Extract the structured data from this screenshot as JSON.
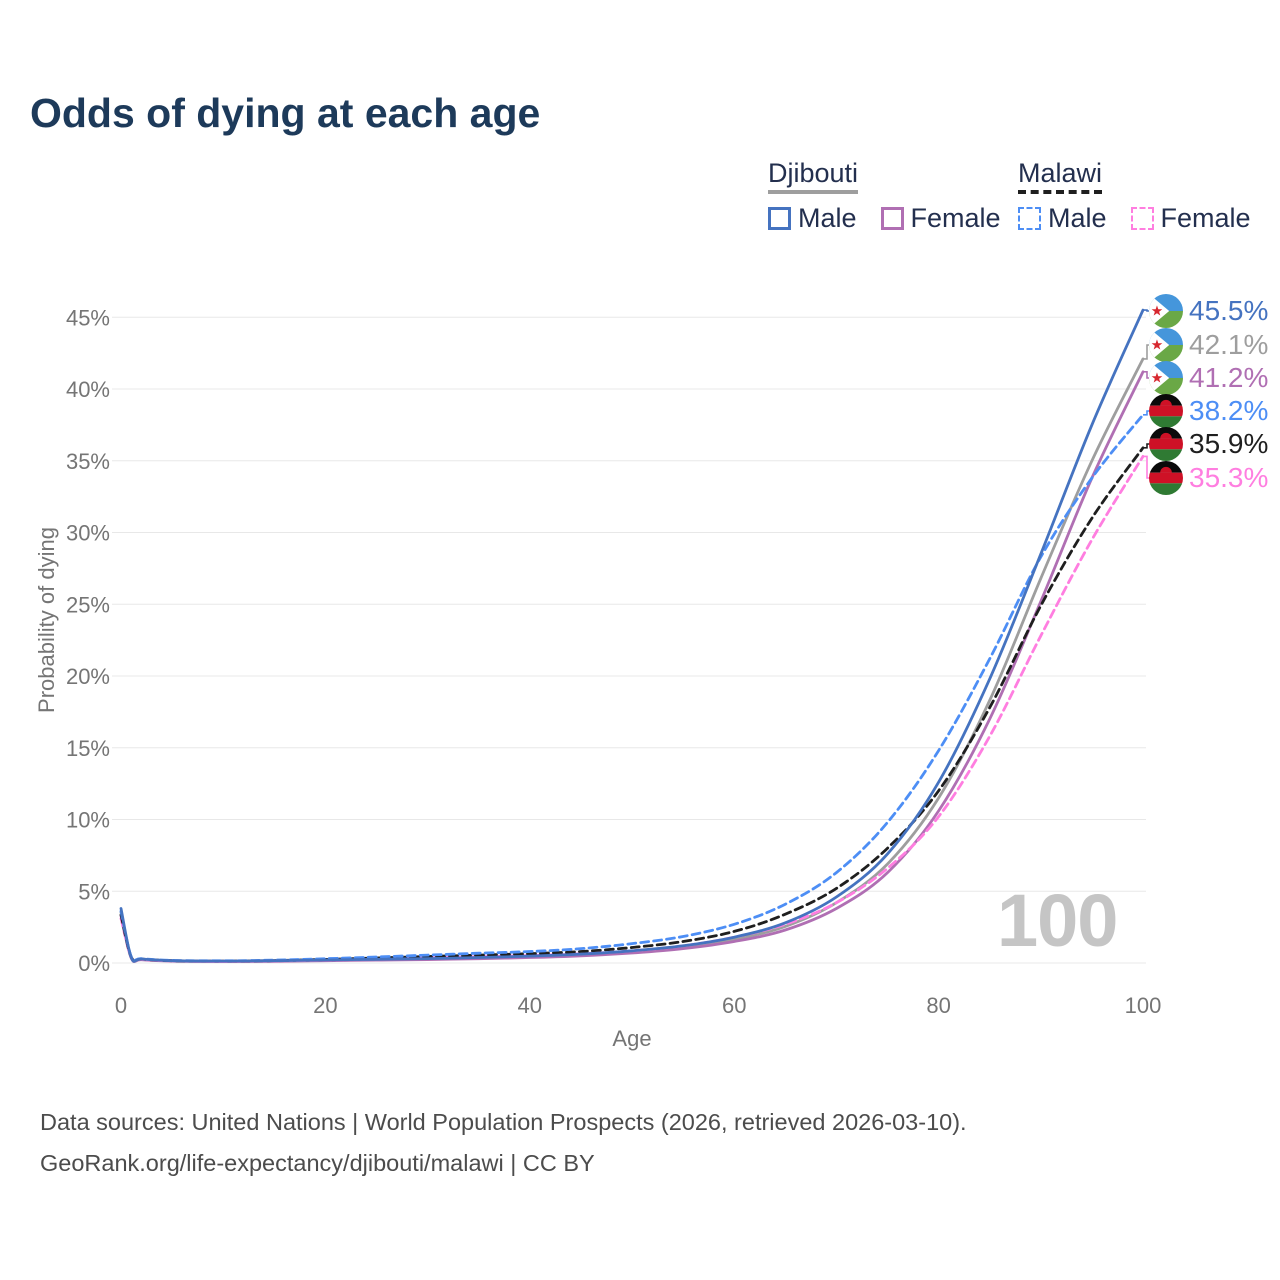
{
  "title": "Odds of dying at each age",
  "watermark": "100",
  "legend": {
    "groups": [
      {
        "label": "Djibouti",
        "line_style": "solid",
        "line_color": "#9e9e9e",
        "items": [
          {
            "label": "Male",
            "color": "#4573c0"
          },
          {
            "label": "Female",
            "color": "#b06fb3"
          }
        ]
      },
      {
        "label": "Malawi",
        "line_style": "dashed",
        "line_color": "#1f1f1f",
        "items": [
          {
            "label": "Male",
            "color": "#4d8ef5"
          },
          {
            "label": "Female",
            "color": "#ff7ee0"
          }
        ]
      }
    ]
  },
  "footer": {
    "line1": "Data sources: United Nations | World Population Prospects (2026, retrieved 2026-03-10).",
    "line2": "GeoRank.org/life-expectancy/djibouti/malawi | CC BY"
  },
  "chart_data": {
    "type": "line",
    "title": "Odds of dying at each age",
    "xlabel": "Age",
    "ylabel": "Probability of dying",
    "xlim": [
      0,
      100
    ],
    "ylim_pct": [
      0,
      46
    ],
    "grid": "horizontal",
    "legend_position": "top-right",
    "x_ticks": [
      {
        "v": 0,
        "label": "0"
      },
      {
        "v": 20,
        "label": "20"
      },
      {
        "v": 40,
        "label": "40"
      },
      {
        "v": 60,
        "label": "60"
      },
      {
        "v": 80,
        "label": "80"
      },
      {
        "v": 100,
        "label": "100"
      }
    ],
    "y_ticks": [
      {
        "v": 0,
        "label": "0%"
      },
      {
        "v": 5,
        "label": "5%"
      },
      {
        "v": 10,
        "label": "10%"
      },
      {
        "v": 15,
        "label": "15%"
      },
      {
        "v": 20,
        "label": "20%"
      },
      {
        "v": 25,
        "label": "25%"
      },
      {
        "v": 30,
        "label": "30%"
      },
      {
        "v": 35,
        "label": "35%"
      },
      {
        "v": 40,
        "label": "40%"
      },
      {
        "v": 45,
        "label": "45%"
      }
    ],
    "ages": [
      0,
      1,
      2,
      5,
      10,
      15,
      20,
      25,
      30,
      35,
      40,
      45,
      50,
      55,
      60,
      65,
      70,
      75,
      80,
      85,
      90,
      95,
      100
    ],
    "series": [
      {
        "id": "djibouti-male",
        "name": "Djibouti Male",
        "country": "Djibouti",
        "sex": "Male",
        "style": "solid",
        "color": "#4573c0",
        "flag": "djibouti",
        "end_label": "45.5%",
        "values_pct": [
          3.8,
          0.4,
          0.28,
          0.16,
          0.13,
          0.16,
          0.21,
          0.26,
          0.31,
          0.38,
          0.48,
          0.62,
          0.85,
          1.2,
          1.8,
          2.8,
          4.6,
          7.6,
          12.6,
          19.8,
          28.5,
          37.5,
          45.5
        ]
      },
      {
        "id": "djibouti-both",
        "name": "Djibouti",
        "country": "Djibouti",
        "style": "solid",
        "color": "#9e9e9e",
        "flag": "djibouti",
        "end_label": "42.1%",
        "values_pct": [
          3.55,
          0.38,
          0.25,
          0.15,
          0.12,
          0.14,
          0.18,
          0.23,
          0.27,
          0.34,
          0.43,
          0.56,
          0.77,
          1.1,
          1.65,
          2.55,
          4.2,
          6.9,
          11.5,
          18.3,
          26.8,
          35.0,
          42.1
        ]
      },
      {
        "id": "djibouti-female",
        "name": "Djibouti Female",
        "country": "Djibouti",
        "sex": "Female",
        "style": "solid",
        "color": "#b06fb3",
        "flag": "djibouti",
        "end_label": "41.2%",
        "values_pct": [
          3.3,
          0.35,
          0.23,
          0.13,
          0.1,
          0.12,
          0.16,
          0.2,
          0.24,
          0.3,
          0.38,
          0.5,
          0.7,
          1.0,
          1.5,
          2.3,
          3.8,
          6.3,
          10.6,
          17.0,
          25.2,
          33.8,
          41.2
        ]
      },
      {
        "id": "malawi-male",
        "name": "Malawi Male",
        "country": "Malawi",
        "sex": "Male",
        "style": "dashed",
        "color": "#4d8ef5",
        "flag": "malawi",
        "end_label": "38.2%",
        "values_pct": [
          3.6,
          0.45,
          0.3,
          0.18,
          0.15,
          0.2,
          0.3,
          0.42,
          0.55,
          0.68,
          0.8,
          1.0,
          1.35,
          1.85,
          2.7,
          4.1,
          6.3,
          9.8,
          14.8,
          21.2,
          28.3,
          33.8,
          38.2
        ]
      },
      {
        "id": "malawi-both",
        "name": "Malawi",
        "country": "Malawi",
        "style": "dashed",
        "color": "#1f1f1f",
        "flag": "malawi",
        "end_label": "35.9%",
        "values_pct": [
          3.35,
          0.42,
          0.28,
          0.16,
          0.13,
          0.17,
          0.25,
          0.35,
          0.45,
          0.55,
          0.65,
          0.8,
          1.08,
          1.5,
          2.2,
          3.4,
          5.2,
          8.0,
          12.0,
          17.8,
          24.9,
          31.0,
          35.9
        ]
      },
      {
        "id": "malawi-female",
        "name": "Malawi Female",
        "country": "Malawi",
        "sex": "Female",
        "style": "dashed",
        "color": "#ff7ee0",
        "flag": "malawi",
        "end_label": "35.3%",
        "values_pct": [
          3.1,
          0.4,
          0.26,
          0.15,
          0.12,
          0.15,
          0.2,
          0.28,
          0.36,
          0.44,
          0.52,
          0.64,
          0.85,
          1.2,
          1.8,
          2.7,
          4.2,
          6.6,
          10.2,
          15.8,
          22.8,
          29.5,
          35.3
        ]
      }
    ]
  }
}
